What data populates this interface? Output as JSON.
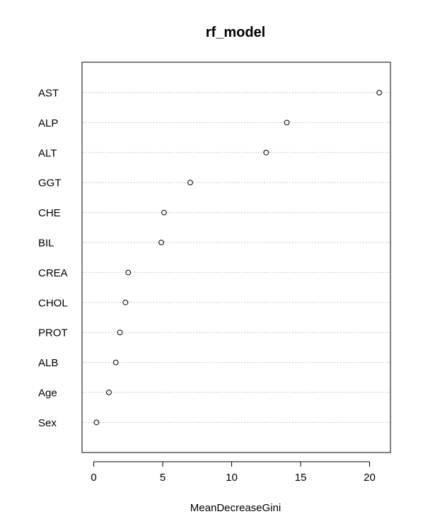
{
  "chart_data": {
    "type": "scatter",
    "title": "rf_model",
    "xlabel": "MeanDecreaseGini",
    "ylabel": "",
    "xlim": [
      -0.8,
      21.5
    ],
    "xticks": [
      0,
      5,
      10,
      15,
      20
    ],
    "grid": "dotted horizontal guide lines per variable",
    "categories": [
      "AST",
      "ALP",
      "ALT",
      "GGT",
      "CHE",
      "BIL",
      "CREA",
      "CHOL",
      "PROT",
      "ALB",
      "Age",
      "Sex"
    ],
    "values": [
      20.7,
      14.0,
      12.5,
      7.0,
      5.1,
      4.9,
      2.5,
      2.3,
      1.9,
      1.6,
      1.1,
      0.2
    ]
  }
}
